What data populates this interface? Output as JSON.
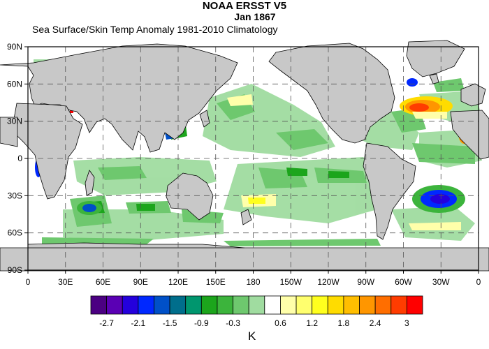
{
  "title": "NOAA ERSST V5",
  "date": "Jan 1867",
  "subtitle": "Sea Surface/Skin Temp Anomaly  1981-2010 Climatology",
  "lon_labels": [
    "0",
    "30E",
    "60E",
    "90E",
    "120E",
    "150E",
    "180",
    "150W",
    "120W",
    "90W",
    "60W",
    "30W",
    "0"
  ],
  "lat_labels": [
    "90N",
    "60N",
    "30N",
    "0",
    "30S",
    "60S",
    "90S"
  ],
  "colorbar": {
    "colors": [
      "#4b0082",
      "#5a00b4",
      "#2400dc",
      "#0028ff",
      "#0050c8",
      "#006e8c",
      "#00966e",
      "#1ca51c",
      "#3cb43c",
      "#6ec86e",
      "#a0dca0",
      "#ffffff",
      "#ffffaa",
      "#ffff6e",
      "#ffff1e",
      "#ffdc00",
      "#ffbe00",
      "#ff9600",
      "#ff6e00",
      "#ff3c00",
      "#ff0000"
    ],
    "labels": [
      "-2.7",
      "-2.1",
      "-1.5",
      "-0.9",
      "-0.3",
      "0.6",
      "1.2",
      "1.8",
      "2.4",
      "3"
    ],
    "label_slots": [
      1,
      3,
      5,
      7,
      9,
      12,
      14,
      16,
      18,
      20
    ],
    "units": "K"
  },
  "style": {
    "land": "#c8c8c8",
    "ocean": "#ffffff",
    "grid": "#555555"
  }
}
